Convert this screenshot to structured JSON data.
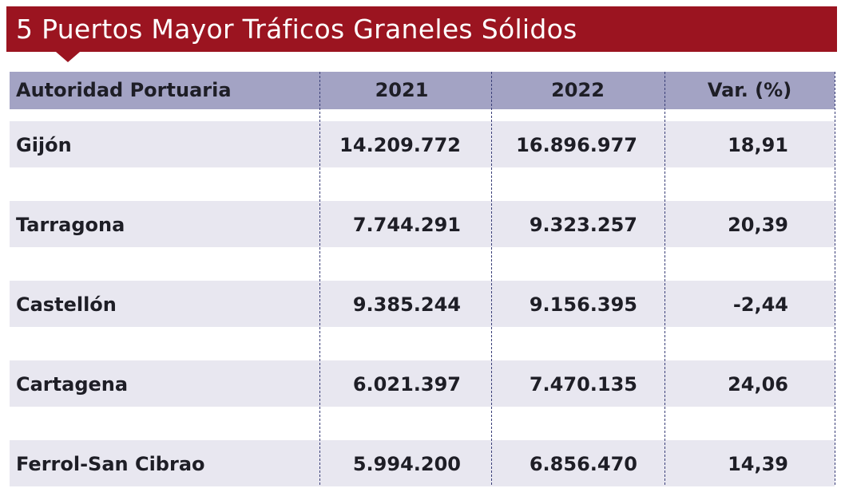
{
  "title": "5 Puertos Mayor Tráficos Graneles Sólidos",
  "colors": {
    "title_bg": "#9b1420",
    "header_bg": "#a3a3c4",
    "row_bg": "#e8e7f0",
    "divider": "#3a3f78"
  },
  "table": {
    "headers": [
      "Autoridad Portuaria",
      "2021",
      "2022",
      "Var. (%)"
    ],
    "rows": [
      [
        "Gijón",
        "14.209.772",
        "16.896.977",
        "18,91"
      ],
      [
        "Tarragona",
        "7.744.291",
        "9.323.257",
        "20,39"
      ],
      [
        "Castellón",
        "9.385.244",
        "9.156.395",
        "-2,44"
      ],
      [
        "Cartagena",
        "6.021.397",
        "7.470.135",
        "24,06"
      ],
      [
        "Ferrol-San Cibrao",
        "5.994.200",
        "6.856.470",
        "14,39"
      ]
    ]
  }
}
